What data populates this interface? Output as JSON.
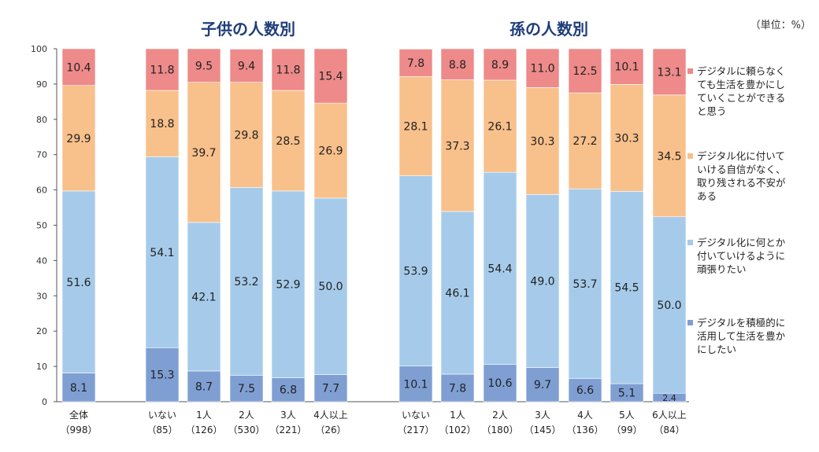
{
  "chart_data": {
    "type": "bar",
    "stacked": true,
    "unit_note": "（単位：%）",
    "ylim": [
      0,
      100
    ],
    "yticks": [
      0,
      10,
      20,
      30,
      40,
      50,
      60,
      70,
      80,
      90,
      100
    ],
    "grid": false,
    "legend_position": "right",
    "group_titles": [
      "子供の人数別",
      "孫の人数別"
    ],
    "categories": [
      {
        "label": "全体",
        "n": "（998）"
      },
      {
        "label": "いない",
        "n": "（85）"
      },
      {
        "label": "1人",
        "n": "（126）"
      },
      {
        "label": "2人",
        "n": "（530）"
      },
      {
        "label": "3人",
        "n": "（221）"
      },
      {
        "label": "4人以上",
        "n": "（26）"
      },
      {
        "label": "いない",
        "n": "（217）"
      },
      {
        "label": "1人",
        "n": "（102）"
      },
      {
        "label": "2人",
        "n": "（180）"
      },
      {
        "label": "3人",
        "n": "（145）"
      },
      {
        "label": "4人",
        "n": "（136）"
      },
      {
        "label": "5人",
        "n": "（99）"
      },
      {
        "label": "6人以上",
        "n": "（84）"
      }
    ],
    "series": [
      {
        "name": "デジタルを積極的に活用して生活を豊かにしたい",
        "color": "#7f9fd3",
        "values": [
          8.1,
          15.3,
          8.7,
          7.5,
          6.8,
          7.7,
          10.1,
          7.8,
          10.6,
          9.7,
          6.6,
          5.1,
          2.4
        ]
      },
      {
        "name": "デジタル化に何とか付いていけるように頑張りたい",
        "color": "#a6cbea",
        "values": [
          51.6,
          54.1,
          42.1,
          53.2,
          52.9,
          50.0,
          53.9,
          46.1,
          54.4,
          49.0,
          53.7,
          54.5,
          50.0
        ]
      },
      {
        "name": "デジタル化に付いていける自信がなく、取り残される不安がある",
        "color": "#f8c08b",
        "values": [
          29.9,
          18.8,
          39.7,
          29.8,
          28.5,
          26.9,
          28.1,
          37.3,
          26.1,
          30.3,
          27.2,
          30.3,
          34.5
        ]
      },
      {
        "name": "デジタルに頼らなくても生活を豊かにしていくことができると思う",
        "color": "#ee8a8a",
        "values": [
          10.4,
          11.8,
          9.5,
          9.4,
          11.8,
          15.4,
          7.8,
          8.8,
          8.9,
          11.0,
          12.5,
          10.1,
          13.1
        ]
      }
    ],
    "value_labels": [
      [
        "8.1",
        "15.3",
        "8.7",
        "7.5",
        "6.8",
        "7.7",
        "10.1",
        "7.8",
        "10.6",
        "9.7",
        "6.6",
        "5.1",
        "2.4"
      ],
      [
        "51.6",
        "54.1",
        "42.1",
        "53.2",
        "52.9",
        "50.0",
        "53.9",
        "46.1",
        "54.4",
        "49.0",
        "53.7",
        "54.5",
        "50.0"
      ],
      [
        "29.9",
        "18.8",
        "39.7",
        "29.8",
        "28.5",
        "26.9",
        "28.1",
        "37.3",
        "26.1",
        "30.3",
        "27.2",
        "30.3",
        "34.5"
      ],
      [
        "10.4",
        "11.8",
        "9.5",
        "9.4",
        "11.8",
        "15.4",
        "7.8",
        "8.8",
        "8.9",
        "11.0",
        "12.5",
        "10.1",
        "13.1"
      ]
    ],
    "legend": [
      {
        "lines": [
          "デジタルに頼らなく",
          "ても生活を豊かにし",
          "ていくことができる",
          "と思う"
        ],
        "color": "#ee8a8a"
      },
      {
        "lines": [
          "デジタル化に付いて",
          "いける自信がなく、",
          "取り残される不安が",
          "ある"
        ],
        "color": "#f8c08b"
      },
      {
        "lines": [
          "デジタル化に何とか",
          "付いていけるように",
          "頑張りたい"
        ],
        "color": "#a6cbea"
      },
      {
        "lines": [
          "デジタルを積極的に",
          "活用して生活を豊か",
          "にしたい"
        ],
        "color": "#7f9fd3"
      }
    ]
  }
}
